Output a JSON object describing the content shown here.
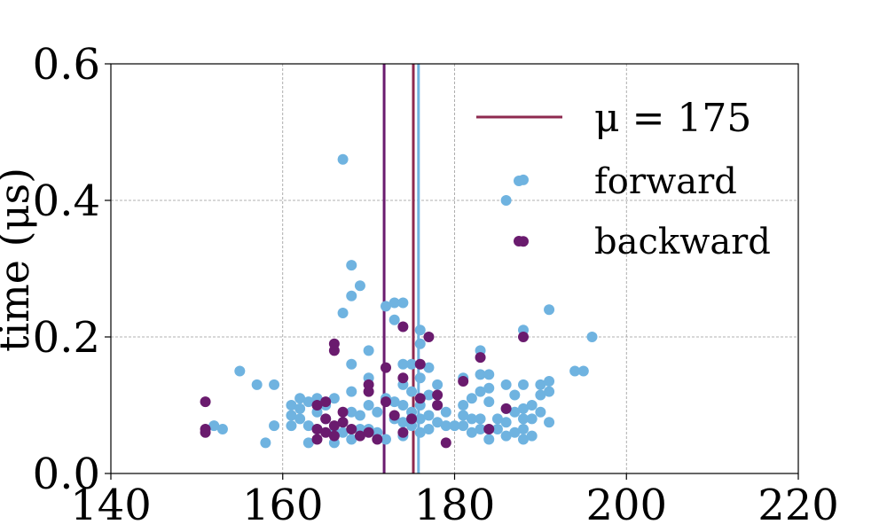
{
  "chart_data": {
    "type": "scatter",
    "title": "",
    "xlabel": "",
    "ylabel": "time (μs)",
    "xlim": [
      140,
      220
    ],
    "ylim": [
      0.0,
      0.6
    ],
    "xticks": [
      "140",
      "160",
      "180",
      "200",
      "220"
    ],
    "yticks": [
      "0.0",
      "0.2",
      "0.4",
      "0.6"
    ],
    "xtick_values": [
      140,
      160,
      180,
      200,
      220
    ],
    "ytick_values": [
      0.0,
      0.2,
      0.4,
      0.6
    ],
    "grid": true,
    "legend_position": "top-right",
    "vertical_lines": [
      {
        "label": "μ = 175",
        "x": 175.2,
        "color": "#8e2a4f"
      },
      {
        "label": "",
        "x": 171.8,
        "color": "#6a1b6e"
      },
      {
        "label": "",
        "x": 175.8,
        "color": "#6fb3e0"
      }
    ],
    "series": [
      {
        "name": "forward",
        "color": "#6fb3e0",
        "points": [
          [
            152,
            0.07
          ],
          [
            153,
            0.065
          ],
          [
            155,
            0.15
          ],
          [
            157,
            0.13
          ],
          [
            158,
            0.045
          ],
          [
            159,
            0.13
          ],
          [
            159,
            0.07
          ],
          [
            161,
            0.1
          ],
          [
            161,
            0.085
          ],
          [
            161,
            0.07
          ],
          [
            162,
            0.11
          ],
          [
            162,
            0.08
          ],
          [
            162,
            0.095
          ],
          [
            163,
            0.105
          ],
          [
            163,
            0.07
          ],
          [
            163,
            0.045
          ],
          [
            164,
            0.11
          ],
          [
            164,
            0.09
          ],
          [
            164,
            0.065
          ],
          [
            165,
            0.1
          ],
          [
            165,
            0.08
          ],
          [
            166,
            0.06
          ],
          [
            166,
            0.045
          ],
          [
            166,
            0.11
          ],
          [
            167,
            0.235
          ],
          [
            167,
            0.46
          ],
          [
            167,
            0.075
          ],
          [
            167,
            0.06
          ],
          [
            168,
            0.305
          ],
          [
            168,
            0.26
          ],
          [
            168,
            0.16
          ],
          [
            168,
            0.12
          ],
          [
            168,
            0.09
          ],
          [
            168,
            0.05
          ],
          [
            169,
            0.275
          ],
          [
            169,
            0.085
          ],
          [
            169,
            0.065
          ],
          [
            170,
            0.18
          ],
          [
            170,
            0.14
          ],
          [
            170,
            0.1
          ],
          [
            170,
            0.065
          ],
          [
            171,
            0.09
          ],
          [
            171,
            0.06
          ],
          [
            172,
            0.245
          ],
          [
            172,
            0.11
          ],
          [
            172,
            0.05
          ],
          [
            173,
            0.25
          ],
          [
            173,
            0.225
          ],
          [
            173,
            0.105
          ],
          [
            173,
            0.08
          ],
          [
            174,
            0.25
          ],
          [
            174,
            0.16
          ],
          [
            174,
            0.13
          ],
          [
            174,
            0.1
          ],
          [
            174,
            0.075
          ],
          [
            174,
            0.055
          ],
          [
            175,
            0.16
          ],
          [
            175,
            0.12
          ],
          [
            175,
            0.09
          ],
          [
            175,
            0.07
          ],
          [
            176,
            0.21
          ],
          [
            176,
            0.19
          ],
          [
            176,
            0.14
          ],
          [
            176,
            0.1
          ],
          [
            176,
            0.08
          ],
          [
            176,
            0.06
          ],
          [
            177,
            0.155
          ],
          [
            177,
            0.115
          ],
          [
            177,
            0.085
          ],
          [
            177,
            0.065
          ],
          [
            178,
            0.13
          ],
          [
            178,
            0.1
          ],
          [
            178,
            0.075
          ],
          [
            179,
            0.09
          ],
          [
            179,
            0.07
          ],
          [
            180,
            0.07
          ],
          [
            181,
            0.14
          ],
          [
            181,
            0.1
          ],
          [
            181,
            0.085
          ],
          [
            181,
            0.07
          ],
          [
            182,
            0.11
          ],
          [
            182,
            0.08
          ],
          [
            182,
            0.06
          ],
          [
            183,
            0.18
          ],
          [
            183,
            0.145
          ],
          [
            183,
            0.12
          ],
          [
            183,
            0.08
          ],
          [
            183,
            0.065
          ],
          [
            184,
            0.145
          ],
          [
            184,
            0.125
          ],
          [
            184,
            0.105
          ],
          [
            184,
            0.05
          ],
          [
            185,
            0.08
          ],
          [
            185,
            0.065
          ],
          [
            186,
            0.4
          ],
          [
            186,
            0.13
          ],
          [
            186,
            0.095
          ],
          [
            186,
            0.075
          ],
          [
            186,
            0.055
          ],
          [
            187,
            0.115
          ],
          [
            187,
            0.09
          ],
          [
            187,
            0.06
          ],
          [
            188,
            0.43
          ],
          [
            188,
            0.21
          ],
          [
            188,
            0.13
          ],
          [
            188,
            0.095
          ],
          [
            188,
            0.08
          ],
          [
            188,
            0.065
          ],
          [
            188,
            0.05
          ],
          [
            189,
            0.1
          ],
          [
            189,
            0.08
          ],
          [
            189,
            0.055
          ],
          [
            190,
            0.13
          ],
          [
            190,
            0.115
          ],
          [
            190,
            0.09
          ],
          [
            191,
            0.24
          ],
          [
            191,
            0.135
          ],
          [
            191,
            0.12
          ],
          [
            191,
            0.075
          ],
          [
            194,
            0.15
          ],
          [
            195,
            0.15
          ],
          [
            196,
            0.2
          ]
        ]
      },
      {
        "name": "backward",
        "color": "#6a1b6e",
        "points": [
          [
            151,
            0.105
          ],
          [
            151,
            0.065
          ],
          [
            151,
            0.06
          ],
          [
            164,
            0.1
          ],
          [
            164,
            0.065
          ],
          [
            164,
            0.05
          ],
          [
            165,
            0.105
          ],
          [
            165,
            0.08
          ],
          [
            165,
            0.06
          ],
          [
            166,
            0.19
          ],
          [
            166,
            0.18
          ],
          [
            166,
            0.07
          ],
          [
            166,
            0.055
          ],
          [
            167,
            0.09
          ],
          [
            167,
            0.075
          ],
          [
            168,
            0.065
          ],
          [
            169,
            0.055
          ],
          [
            170,
            0.13
          ],
          [
            170,
            0.12
          ],
          [
            170,
            0.06
          ],
          [
            171,
            0.05
          ],
          [
            172,
            0.155
          ],
          [
            172,
            0.105
          ],
          [
            173,
            0.085
          ],
          [
            174,
            0.215
          ],
          [
            174,
            0.14
          ],
          [
            174,
            0.06
          ],
          [
            175,
            0.08
          ],
          [
            176,
            0.16
          ],
          [
            176,
            0.11
          ],
          [
            177,
            0.2
          ],
          [
            178,
            0.115
          ],
          [
            178,
            0.1
          ],
          [
            179,
            0.045
          ],
          [
            181,
            0.135
          ],
          [
            183,
            0.17
          ],
          [
            184,
            0.065
          ],
          [
            186,
            0.095
          ],
          [
            188,
            0.2
          ],
          [
            188,
            0.34
          ]
        ]
      }
    ]
  }
}
